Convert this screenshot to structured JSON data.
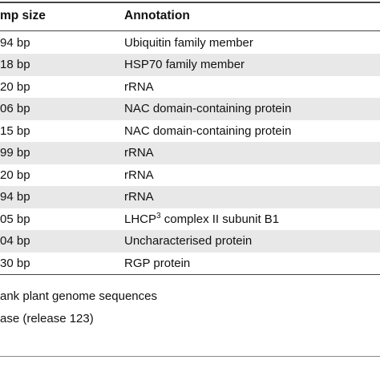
{
  "table": {
    "header": [
      "mp size",
      "Annotation"
    ],
    "rows": [
      {
        "size": "94 bp",
        "annotation": "Ubiquitin family member"
      },
      {
        "size": "18 bp",
        "annotation": "HSP70 family member"
      },
      {
        "size": "20 bp",
        "annotation": "rRNA"
      },
      {
        "size": "06 bp",
        "annotation": "NAC domain-containing protein"
      },
      {
        "size": "15 bp",
        "annotation": "NAC domain-containing protein"
      },
      {
        "size": "99 bp",
        "annotation": "rRNA"
      },
      {
        "size": "20 bp",
        "annotation": "rRNA"
      },
      {
        "size": "94 bp",
        "annotation": "rRNA"
      },
      {
        "size": "05 bp",
        "annotation": "LHCP",
        "annotation_sup": "3",
        "annotation_rest": " complex II subunit B1"
      },
      {
        "size": "04 bp",
        "annotation": "Uncharacterised protein"
      },
      {
        "size": "30 bp",
        "annotation": "RGP protein"
      }
    ]
  },
  "footnotes": [
    "ank plant genome sequences",
    "ase (release 123)"
  ]
}
